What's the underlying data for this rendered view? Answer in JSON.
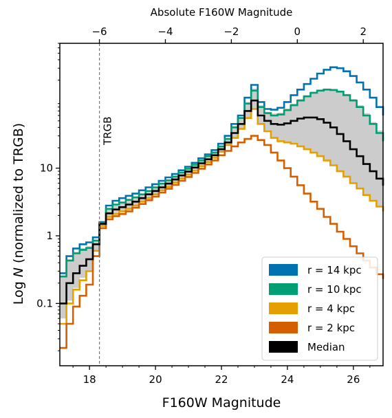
{
  "chart_data": {
    "type": "line",
    "step": true,
    "xlabel": "F160W Magnitude",
    "ylabel": "Log N (normalized to TRGB)",
    "top_xlabel": "Absolute F160W Magnitude",
    "xlim": [
      17.1,
      26.9
    ],
    "ylim": [
      0.012,
      700
    ],
    "yscale": "log",
    "x_ticks": [
      18,
      20,
      22,
      24,
      26
    ],
    "y_ticks": [
      {
        "value": 0.1,
        "label": "0.1"
      },
      {
        "value": 1,
        "label": "1"
      },
      {
        "value": 10,
        "label": "10"
      }
    ],
    "top_x_ticks": [
      {
        "value": -6,
        "label": "−6"
      },
      {
        "value": -4,
        "label": "−4"
      },
      {
        "value": -2,
        "label": "−2"
      },
      {
        "value": 0,
        "label": "0"
      },
      {
        "value": 2,
        "label": "2"
      }
    ],
    "top_axis_offset": 24.3,
    "trgb": {
      "x": 18.3,
      "label": "TRGB"
    },
    "band_color": "#cccccc",
    "legend": {
      "position": "bottom-right",
      "entries": [
        {
          "label": "r = 14 kpc",
          "color": "#0072b2"
        },
        {
          "label": "r = 10 kpc",
          "color": "#009e73"
        },
        {
          "label": "r = 4 kpc",
          "color": "#e69f00"
        },
        {
          "label": "r = 2 kpc",
          "color": "#d55e00"
        },
        {
          "label": "Median",
          "color": "#000000"
        }
      ]
    },
    "x": [
      17.1,
      17.3,
      17.5,
      17.7,
      17.9,
      18.1,
      18.3,
      18.5,
      18.7,
      18.9,
      19.1,
      19.3,
      19.5,
      19.7,
      19.9,
      20.1,
      20.3,
      20.5,
      20.7,
      20.9,
      21.1,
      21.3,
      21.5,
      21.7,
      21.9,
      22.1,
      22.3,
      22.5,
      22.7,
      22.9,
      23.1,
      23.3,
      23.5,
      23.7,
      23.9,
      24.1,
      24.3,
      24.5,
      24.7,
      24.9,
      25.1,
      25.3,
      25.5,
      25.7,
      25.9,
      26.1,
      26.3,
      26.5,
      26.7,
      26.9
    ],
    "series": [
      {
        "name": "r = 14 kpc",
        "color": "#0072b2",
        "values": [
          0.28,
          0.5,
          0.65,
          0.75,
          0.8,
          0.95,
          1.6,
          2.8,
          3.3,
          3.6,
          3.9,
          4.2,
          4.7,
          5.2,
          5.8,
          6.5,
          7.3,
          8.2,
          9.3,
          10.5,
          12,
          14,
          16,
          18.5,
          23,
          30,
          45,
          60,
          110,
          170,
          95,
          75,
          73,
          78,
          95,
          120,
          145,
          175,
          210,
          250,
          285,
          310,
          300,
          270,
          230,
          185,
          145,
          110,
          80,
          60
        ]
      },
      {
        "name": "r = 10 kpc",
        "color": "#009e73",
        "values": [
          0.25,
          0.43,
          0.55,
          0.62,
          0.66,
          0.85,
          1.55,
          2.5,
          2.9,
          3.1,
          3.4,
          3.7,
          4.1,
          4.6,
          5.2,
          5.9,
          6.6,
          7.5,
          8.6,
          9.8,
          11.2,
          13,
          15,
          17,
          21,
          27,
          40,
          55,
          90,
          140,
          80,
          65,
          60,
          62,
          72,
          85,
          100,
          115,
          130,
          140,
          145,
          143,
          135,
          120,
          100,
          80,
          60,
          45,
          33,
          25
        ]
      },
      {
        "name": "Median",
        "color": "#000000",
        "values": [
          0.1,
          0.2,
          0.28,
          0.36,
          0.45,
          0.75,
          1.5,
          2.15,
          2.45,
          2.65,
          2.9,
          3.2,
          3.6,
          4.1,
          4.6,
          5.2,
          5.9,
          6.8,
          7.8,
          8.9,
          10.2,
          11.8,
          13.5,
          15.5,
          19,
          24,
          33,
          45,
          70,
          100,
          60,
          50,
          45,
          44,
          46,
          50,
          54,
          56,
          56,
          53,
          47,
          40,
          32,
          25,
          19,
          15,
          11.5,
          9,
          7,
          5.5
        ]
      },
      {
        "name": "r = 4 kpc",
        "color": "#e69f00",
        "values": [
          0.05,
          0.1,
          0.16,
          0.22,
          0.3,
          0.6,
          1.4,
          1.9,
          2.1,
          2.3,
          2.5,
          2.8,
          3.2,
          3.6,
          4.1,
          4.7,
          5.3,
          6.1,
          7,
          8,
          9.2,
          10.7,
          12.3,
          14.2,
          17.5,
          22,
          28,
          38,
          55,
          75,
          45,
          35,
          28,
          25,
          24,
          23,
          21,
          19,
          17,
          15,
          13,
          11,
          9,
          7.5,
          6,
          5,
          4,
          3.3,
          2.7,
          2.3
        ]
      },
      {
        "name": "r = 2 kpc",
        "color": "#d55e00",
        "values": [
          0.022,
          0.05,
          0.09,
          0.13,
          0.19,
          0.5,
          1.3,
          1.75,
          1.95,
          2.1,
          2.3,
          2.6,
          2.95,
          3.35,
          3.8,
          4.35,
          4.95,
          5.65,
          6.5,
          7.4,
          8.5,
          9.8,
          11.3,
          13,
          15.5,
          18,
          21,
          24,
          27,
          30,
          26,
          22,
          17,
          13,
          10,
          7.5,
          5.6,
          4.2,
          3.2,
          2.5,
          1.9,
          1.5,
          1.15,
          0.9,
          0.7,
          0.55,
          0.43,
          0.34,
          0.27,
          0.23
        ]
      }
    ],
    "band": {
      "upper": [
        0.26,
        0.45,
        0.58,
        0.66,
        0.7,
        0.87,
        1.56,
        2.55,
        2.95,
        3.15,
        3.45,
        3.75,
        4.2,
        4.7,
        5.3,
        6,
        6.7,
        7.6,
        8.7,
        9.9,
        11.3,
        13.1,
        15.1,
        17.2,
        21.5,
        28,
        42,
        57,
        95,
        150,
        85,
        68,
        64,
        66,
        76,
        90,
        105,
        120,
        135,
        145,
        150,
        148,
        140,
        125,
        105,
        85,
        65,
        48,
        36,
        27
      ],
      "lower": [
        0.06,
        0.11,
        0.17,
        0.24,
        0.31,
        0.62,
        1.41,
        1.92,
        2.12,
        2.32,
        2.52,
        2.82,
        3.22,
        3.62,
        4.12,
        4.72,
        5.32,
        6.12,
        7.02,
        8.02,
        9.22,
        10.72,
        12.32,
        14.22,
        17.52,
        22.02,
        28.02,
        38.02,
        55.02,
        75.02,
        45,
        35,
        28,
        25,
        24,
        23,
        21,
        19,
        17,
        15,
        13,
        11,
        9,
        7.5,
        6,
        5,
        4,
        3.3,
        2.7,
        2.3
      ]
    }
  }
}
